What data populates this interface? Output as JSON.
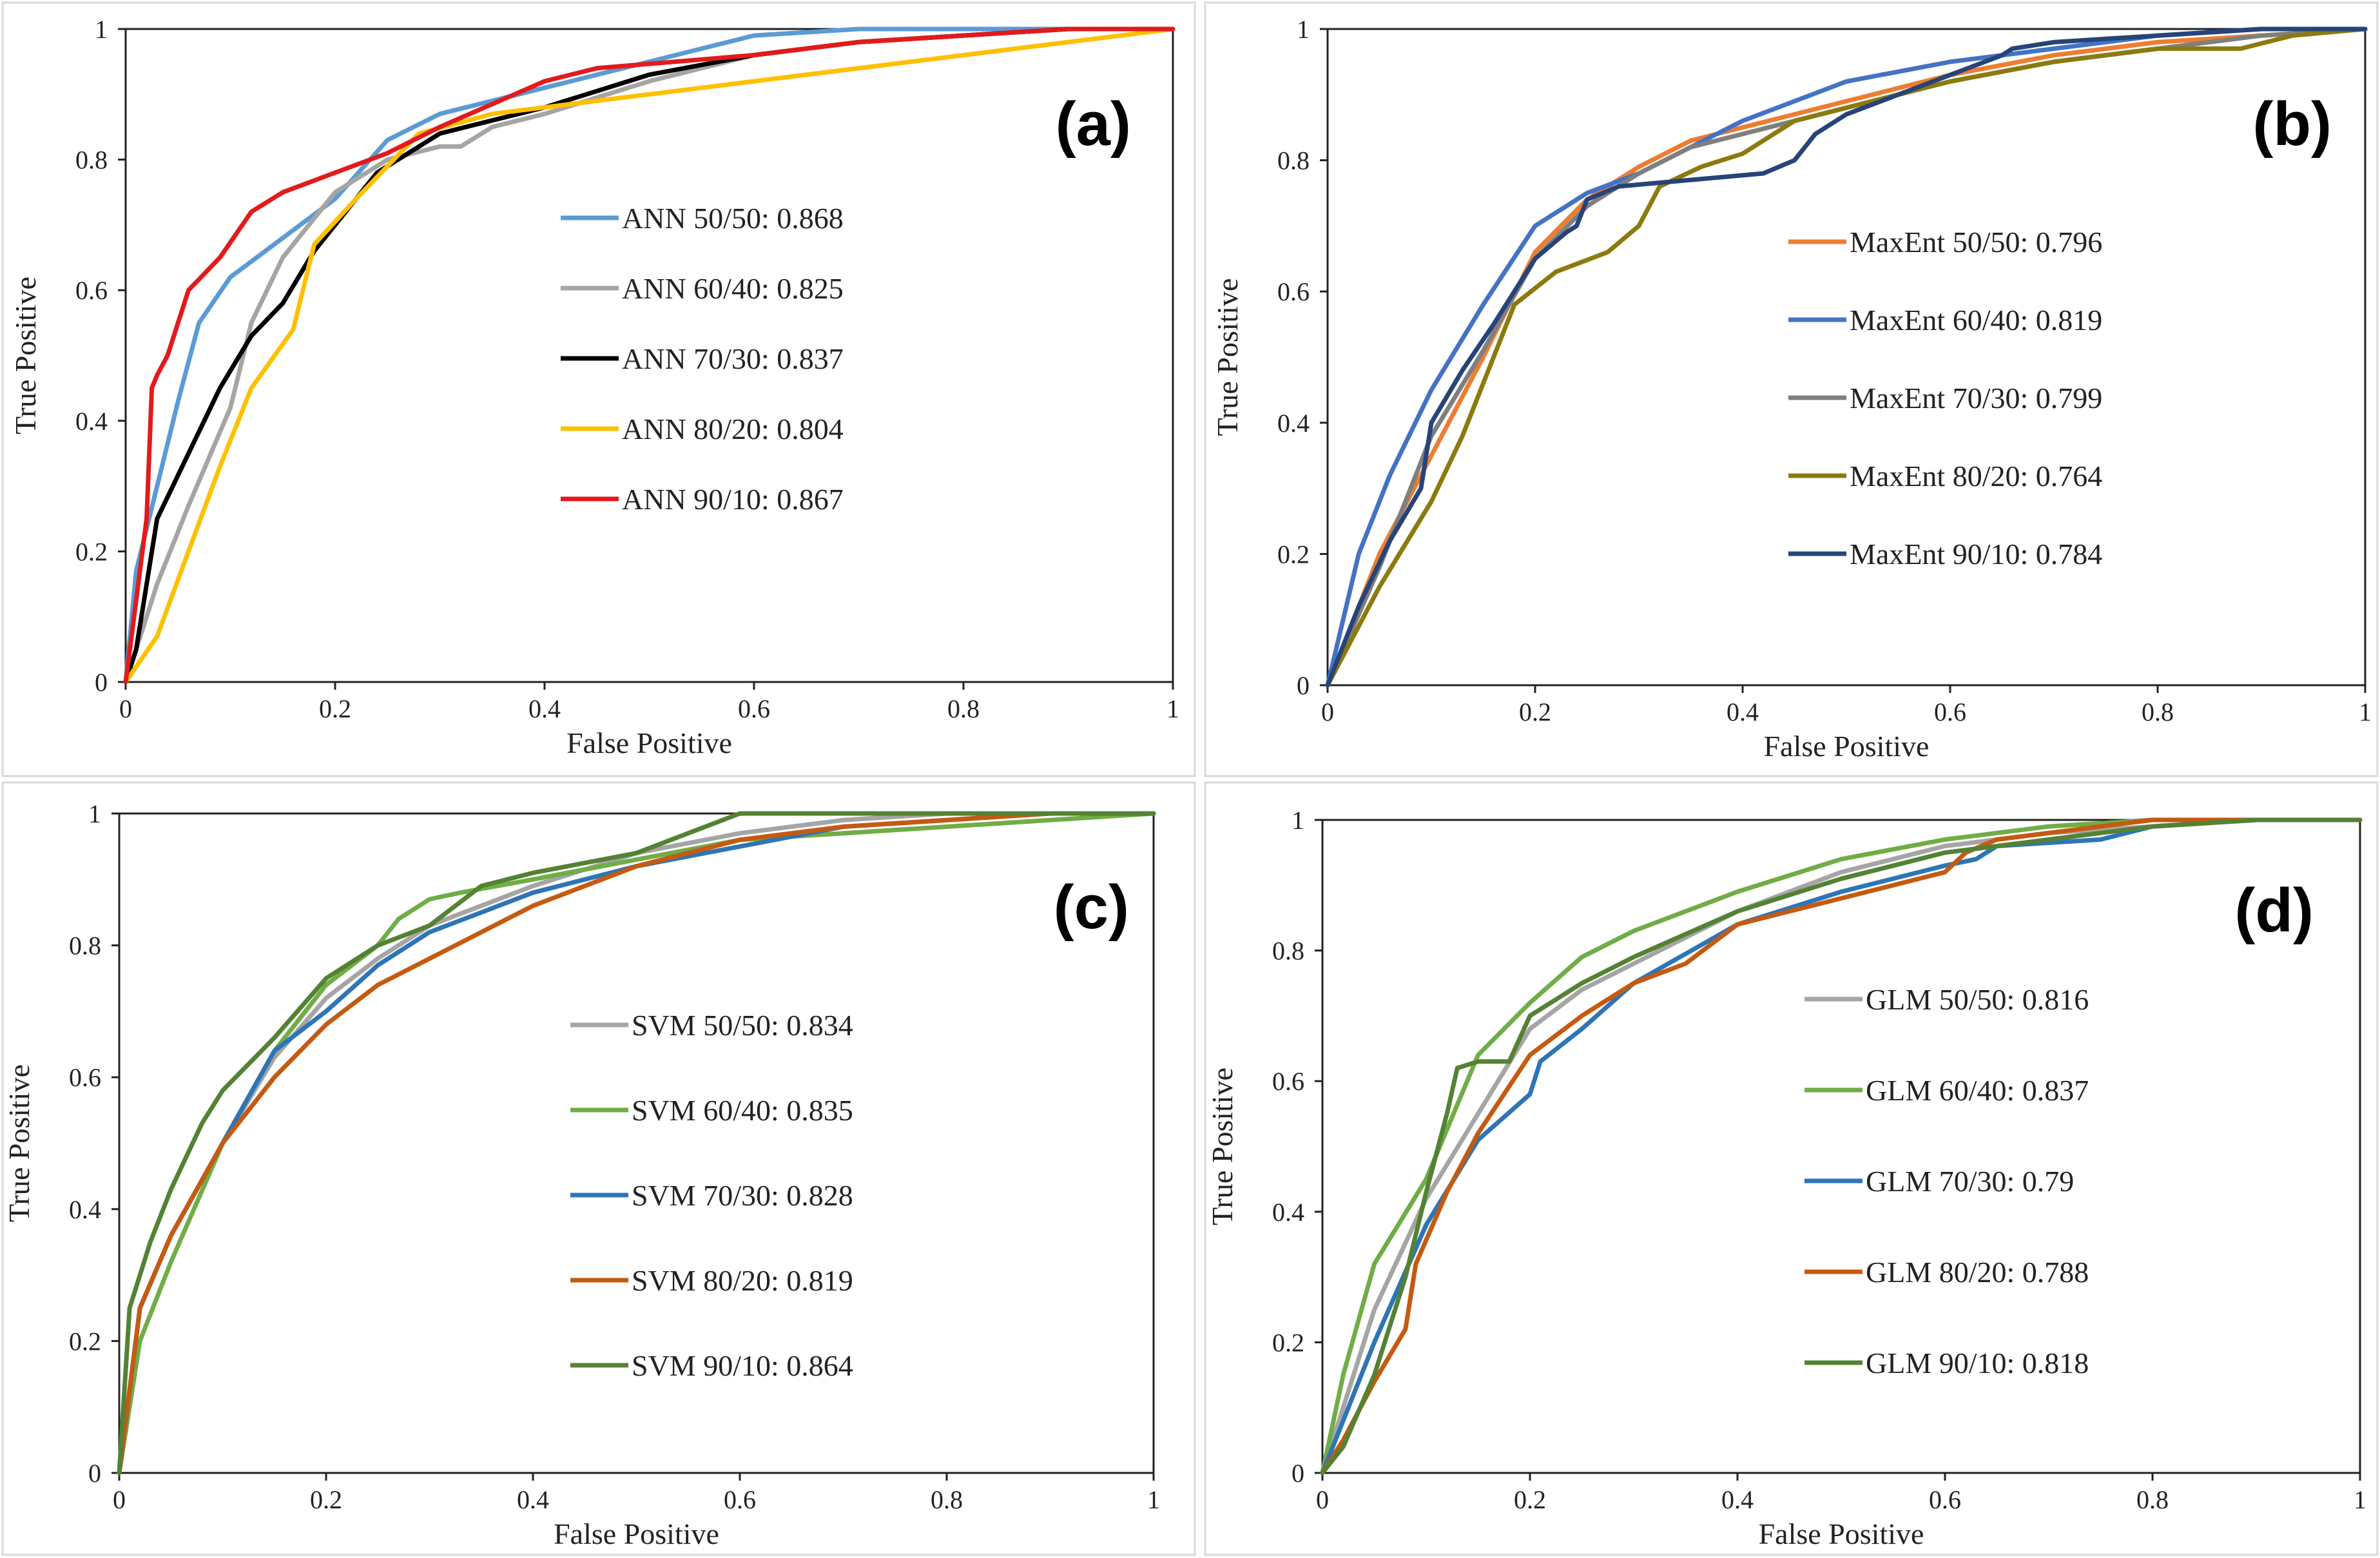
{
  "chart_data": [
    {
      "type": "line",
      "panel_label": "(a)",
      "xlabel": "False Positive",
      "ylabel": "True Positive",
      "xlim": [
        0,
        1
      ],
      "ylim": [
        0,
        1
      ],
      "xticks": [
        "0",
        "0.2",
        "0.4",
        "0.6",
        "0.8",
        "1"
      ],
      "yticks": [
        "0",
        "0.2",
        "0.4",
        "0.6",
        "0.8",
        "1"
      ],
      "grid": false,
      "series": [
        {
          "name": "ANN 50/50: 0.868",
          "color": "#5B9BD5",
          "x": [
            0,
            0.01,
            0.03,
            0.05,
            0.07,
            0.1,
            0.15,
            0.2,
            0.25,
            0.3,
            0.4,
            0.5,
            0.6,
            0.7,
            0.8,
            0.9,
            1
          ],
          "y": [
            0,
            0.17,
            0.3,
            0.43,
            0.55,
            0.62,
            0.68,
            0.74,
            0.83,
            0.87,
            0.91,
            0.95,
            0.99,
            1,
            1,
            1,
            1
          ]
        },
        {
          "name": "ANN 60/40: 0.825",
          "color": "#A5A5A5",
          "x": [
            0,
            0.03,
            0.06,
            0.1,
            0.12,
            0.15,
            0.2,
            0.25,
            0.3,
            0.32,
            0.35,
            0.4,
            0.5,
            0.6,
            0.7,
            0.8,
            0.9,
            1
          ],
          "y": [
            0,
            0.15,
            0.27,
            0.42,
            0.55,
            0.65,
            0.75,
            0.8,
            0.82,
            0.82,
            0.85,
            0.87,
            0.92,
            0.96,
            0.98,
            0.99,
            1,
            1
          ]
        },
        {
          "name": "ANN 70/30: 0.837",
          "color": "#000000",
          "x": [
            0,
            0.01,
            0.03,
            0.06,
            0.09,
            0.12,
            0.15,
            0.18,
            0.21,
            0.24,
            0.3,
            0.4,
            0.5,
            0.6,
            0.7,
            0.8,
            0.9,
            1
          ],
          "y": [
            0,
            0.05,
            0.25,
            0.35,
            0.45,
            0.53,
            0.58,
            0.66,
            0.72,
            0.78,
            0.84,
            0.88,
            0.93,
            0.96,
            0.98,
            0.99,
            1,
            1
          ]
        },
        {
          "name": "ANN 80/20: 0.804",
          "color": "#FFC000",
          "x": [
            0,
            0.03,
            0.06,
            0.09,
            0.12,
            0.16,
            0.18,
            0.22,
            0.28,
            0.35,
            0.45,
            0.55,
            0.65,
            0.75,
            0.85,
            1
          ],
          "y": [
            0,
            0.07,
            0.2,
            0.33,
            0.45,
            0.54,
            0.67,
            0.74,
            0.84,
            0.87,
            0.89,
            0.91,
            0.93,
            0.95,
            0.97,
            1
          ]
        },
        {
          "name": "ANN 90/10: 0.867",
          "color": "#E31A1C",
          "x": [
            0,
            0.02,
            0.025,
            0.03,
            0.04,
            0.06,
            0.09,
            0.12,
            0.15,
            0.2,
            0.25,
            0.3,
            0.4,
            0.45,
            0.6,
            0.7,
            0.8,
            0.9,
            1
          ],
          "y": [
            0,
            0.25,
            0.45,
            0.47,
            0.5,
            0.6,
            0.65,
            0.72,
            0.75,
            0.78,
            0.81,
            0.85,
            0.92,
            0.94,
            0.96,
            0.98,
            0.99,
            1,
            1
          ]
        }
      ]
    },
    {
      "type": "line",
      "panel_label": "(b)",
      "xlabel": "False Positive",
      "ylabel": "True Positive",
      "xlim": [
        0,
        1
      ],
      "ylim": [
        0,
        1
      ],
      "xticks": [
        "0",
        "0.2",
        "0.4",
        "0.6",
        "0.8",
        "1"
      ],
      "yticks": [
        "0",
        "0.2",
        "0.4",
        "0.6",
        "0.8",
        "1"
      ],
      "grid": false,
      "series": [
        {
          "name": "MaxEnt 50/50: 0.796",
          "color": "#ED7D31",
          "x": [
            0,
            0.05,
            0.1,
            0.15,
            0.2,
            0.25,
            0.3,
            0.35,
            0.4,
            0.5,
            0.6,
            0.7,
            0.8,
            0.9,
            1
          ],
          "y": [
            0,
            0.2,
            0.35,
            0.5,
            0.66,
            0.74,
            0.79,
            0.83,
            0.85,
            0.89,
            0.93,
            0.96,
            0.98,
            0.99,
            1
          ]
        },
        {
          "name": "MaxEnt 60/40: 0.819",
          "color": "#4472C4",
          "x": [
            0,
            0.03,
            0.06,
            0.1,
            0.15,
            0.2,
            0.25,
            0.3,
            0.35,
            0.4,
            0.5,
            0.6,
            0.7,
            0.8,
            0.9,
            1
          ],
          "y": [
            0,
            0.2,
            0.32,
            0.45,
            0.58,
            0.7,
            0.75,
            0.78,
            0.82,
            0.86,
            0.92,
            0.95,
            0.97,
            0.99,
            1,
            1
          ]
        },
        {
          "name": "MaxEnt 70/30: 0.799",
          "color": "#7F7F7F",
          "x": [
            0,
            0.05,
            0.1,
            0.15,
            0.2,
            0.25,
            0.3,
            0.35,
            0.4,
            0.5,
            0.6,
            0.7,
            0.8,
            0.9,
            1
          ],
          "y": [
            0,
            0.18,
            0.38,
            0.51,
            0.65,
            0.73,
            0.78,
            0.82,
            0.84,
            0.88,
            0.92,
            0.95,
            0.97,
            0.99,
            1
          ]
        },
        {
          "name": "MaxEnt 80/20: 0.764",
          "color": "#8C7A0E",
          "x": [
            0,
            0.05,
            0.1,
            0.13,
            0.16,
            0.18,
            0.22,
            0.27,
            0.3,
            0.32,
            0.36,
            0.4,
            0.45,
            0.5,
            0.6,
            0.7,
            0.8,
            0.88,
            0.93,
            1
          ],
          "y": [
            0,
            0.15,
            0.28,
            0.38,
            0.5,
            0.58,
            0.63,
            0.66,
            0.7,
            0.76,
            0.79,
            0.81,
            0.86,
            0.88,
            0.92,
            0.95,
            0.97,
            0.97,
            0.99,
            1
          ]
        },
        {
          "name": "MaxEnt 90/10: 0.784",
          "color": "#264478",
          "x": [
            0,
            0.03,
            0.06,
            0.09,
            0.1,
            0.13,
            0.16,
            0.2,
            0.23,
            0.24,
            0.25,
            0.28,
            0.35,
            0.42,
            0.45,
            0.47,
            0.5,
            0.55,
            0.6,
            0.65,
            0.66,
            0.7,
            0.8,
            0.9,
            1
          ],
          "y": [
            0,
            0.12,
            0.22,
            0.3,
            0.4,
            0.48,
            0.55,
            0.65,
            0.69,
            0.7,
            0.74,
            0.76,
            0.77,
            0.78,
            0.8,
            0.84,
            0.87,
            0.9,
            0.93,
            0.96,
            0.97,
            0.98,
            0.99,
            1,
            1
          ]
        }
      ]
    },
    {
      "type": "line",
      "panel_label": "(c)",
      "xlabel": "False Positive",
      "ylabel": "True Positive",
      "xlim": [
        0,
        1
      ],
      "ylim": [
        0,
        1
      ],
      "xticks": [
        "0",
        "0.2",
        "0.4",
        "0.6",
        "0.8",
        "1"
      ],
      "yticks": [
        "0",
        "0.2",
        "0.4",
        "0.6",
        "0.8",
        "1"
      ],
      "grid": false,
      "series": [
        {
          "name": "SVM 50/50: 0.834",
          "color": "#A5A5A5",
          "x": [
            0,
            0.02,
            0.05,
            0.1,
            0.15,
            0.2,
            0.25,
            0.3,
            0.35,
            0.4,
            0.5,
            0.6,
            0.7,
            0.8,
            0.9,
            1
          ],
          "y": [
            0,
            0.25,
            0.36,
            0.5,
            0.63,
            0.72,
            0.78,
            0.83,
            0.86,
            0.89,
            0.94,
            0.97,
            0.99,
            1,
            1,
            1
          ]
        },
        {
          "name": "SVM 60/40: 0.835",
          "color": "#70AD47",
          "x": [
            0,
            0.02,
            0.05,
            0.1,
            0.15,
            0.2,
            0.25,
            0.27,
            0.3,
            0.33,
            0.4,
            0.5,
            0.6,
            0.7,
            0.8,
            0.9,
            1
          ],
          "y": [
            0,
            0.2,
            0.32,
            0.5,
            0.64,
            0.74,
            0.8,
            0.84,
            0.87,
            0.88,
            0.9,
            0.93,
            0.96,
            0.97,
            0.98,
            0.99,
            1
          ]
        },
        {
          "name": "SVM 70/30: 0.828",
          "color": "#2E75B6",
          "x": [
            0,
            0.02,
            0.05,
            0.1,
            0.15,
            0.2,
            0.25,
            0.3,
            0.35,
            0.4,
            0.5,
            0.6,
            0.7,
            0.8,
            0.9,
            1
          ],
          "y": [
            0,
            0.25,
            0.36,
            0.5,
            0.64,
            0.7,
            0.77,
            0.82,
            0.85,
            0.88,
            0.92,
            0.95,
            0.98,
            0.99,
            1,
            1
          ]
        },
        {
          "name": "SVM 80/20: 0.819",
          "color": "#C55A11",
          "x": [
            0,
            0.02,
            0.05,
            0.1,
            0.15,
            0.2,
            0.25,
            0.3,
            0.35,
            0.4,
            0.5,
            0.6,
            0.7,
            0.8,
            0.9,
            1
          ],
          "y": [
            0,
            0.25,
            0.36,
            0.5,
            0.6,
            0.68,
            0.74,
            0.78,
            0.82,
            0.86,
            0.92,
            0.96,
            0.98,
            0.99,
            1,
            1
          ]
        },
        {
          "name": "SVM 90/10: 0.864",
          "color": "#548235",
          "x": [
            0,
            0.01,
            0.03,
            0.05,
            0.08,
            0.1,
            0.15,
            0.2,
            0.25,
            0.3,
            0.35,
            0.4,
            0.5,
            0.55,
            0.6,
            0.7,
            0.8,
            0.9,
            1
          ],
          "y": [
            0,
            0.25,
            0.35,
            0.43,
            0.53,
            0.58,
            0.66,
            0.75,
            0.8,
            0.83,
            0.89,
            0.91,
            0.94,
            0.97,
            1,
            1,
            1,
            1,
            1
          ]
        }
      ]
    },
    {
      "type": "line",
      "panel_label": "(d)",
      "xlabel": "False Positive",
      "ylabel": "True Positive",
      "xlim": [
        0,
        1
      ],
      "ylim": [
        0,
        1
      ],
      "xticks": [
        "0",
        "0.2",
        "0.4",
        "0.6",
        "0.8",
        "1"
      ],
      "yticks": [
        "0",
        "0.2",
        "0.4",
        "0.6",
        "0.8",
        "1"
      ],
      "grid": false,
      "series": [
        {
          "name": "GLM 50/50: 0.816",
          "color": "#A5A5A5",
          "x": [
            0,
            0.02,
            0.05,
            0.1,
            0.15,
            0.2,
            0.25,
            0.3,
            0.4,
            0.5,
            0.6,
            0.7,
            0.8,
            0.9,
            1
          ],
          "y": [
            0,
            0.1,
            0.25,
            0.42,
            0.55,
            0.68,
            0.74,
            0.78,
            0.86,
            0.92,
            0.96,
            0.98,
            0.99,
            1,
            1
          ]
        },
        {
          "name": "GLM 60/40: 0.837",
          "color": "#70AD47",
          "x": [
            0,
            0.02,
            0.05,
            0.1,
            0.15,
            0.2,
            0.25,
            0.3,
            0.4,
            0.5,
            0.6,
            0.7,
            0.8,
            0.9,
            1
          ],
          "y": [
            0,
            0.15,
            0.32,
            0.45,
            0.64,
            0.72,
            0.79,
            0.83,
            0.89,
            0.94,
            0.97,
            0.99,
            1,
            1,
            1
          ]
        },
        {
          "name": "GLM 70/30: 0.79",
          "color": "#2E75B6",
          "x": [
            0,
            0.02,
            0.05,
            0.1,
            0.15,
            0.2,
            0.21,
            0.25,
            0.3,
            0.4,
            0.5,
            0.6,
            0.63,
            0.65,
            0.75,
            0.8,
            0.9,
            1
          ],
          "y": [
            0,
            0.08,
            0.2,
            0.38,
            0.51,
            0.58,
            0.63,
            0.68,
            0.75,
            0.84,
            0.89,
            0.93,
            0.94,
            0.96,
            0.97,
            0.99,
            1,
            1
          ]
        },
        {
          "name": "GLM 80/20: 0.788",
          "color": "#C55A11",
          "x": [
            0,
            0.02,
            0.05,
            0.08,
            0.09,
            0.12,
            0.15,
            0.2,
            0.25,
            0.3,
            0.35,
            0.4,
            0.5,
            0.6,
            0.62,
            0.65,
            0.75,
            0.8,
            0.9,
            1
          ],
          "y": [
            0,
            0.05,
            0.14,
            0.22,
            0.32,
            0.43,
            0.52,
            0.64,
            0.7,
            0.75,
            0.78,
            0.84,
            0.88,
            0.92,
            0.95,
            0.97,
            0.99,
            1,
            1,
            1
          ]
        },
        {
          "name": "GLM 90/10: 0.818",
          "color": "#548235",
          "x": [
            0,
            0.02,
            0.05,
            0.08,
            0.1,
            0.12,
            0.13,
            0.15,
            0.18,
            0.2,
            0.25,
            0.3,
            0.4,
            0.5,
            0.6,
            0.7,
            0.8,
            0.9,
            1
          ],
          "y": [
            0,
            0.04,
            0.15,
            0.3,
            0.43,
            0.55,
            0.62,
            0.63,
            0.63,
            0.7,
            0.75,
            0.79,
            0.86,
            0.91,
            0.95,
            0.97,
            0.99,
            1,
            1
          ]
        }
      ]
    }
  ]
}
